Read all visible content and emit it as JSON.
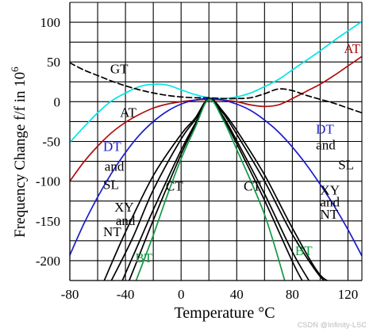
{
  "chart_data": {
    "type": "line",
    "xlabel": "Temperature °C",
    "ylabel": "Frequency Change f/f in 10",
    "ylabel_superscript": "6",
    "xlim": [
      -80,
      130
    ],
    "ylim": [
      -225,
      125
    ],
    "x_ticks": [
      -80,
      -40,
      0,
      40,
      80,
      120
    ],
    "x_tick_labels": [
      "-80",
      "-40",
      "0",
      "40",
      "80",
      "120"
    ],
    "y_ticks": [
      100,
      50,
      0,
      -50,
      -100,
      -150,
      -200
    ],
    "y_tick_labels": [
      "100",
      "50",
      "0",
      "-50",
      "-100",
      "-150",
      "-200"
    ],
    "grid": true,
    "legend": "none (inline labels)",
    "colors": {
      "AT_upper": "#00e5e5",
      "AT_lower": "#b01010",
      "GT": "#000000",
      "DT_SL": "#1c1ccc",
      "XY_NT": "#000000",
      "CT": "#000000",
      "BT": "#119a44",
      "grid": "#000000"
    },
    "series": [
      {
        "name": "AT",
        "color_key": "AT_upper",
        "dash": "solid",
        "x": [
          -80,
          -70,
          -60,
          -50,
          -40,
          -30,
          -20,
          -10,
          0,
          10,
          20,
          30,
          40,
          50,
          60,
          70,
          80,
          90,
          100,
          110,
          120,
          130
        ],
        "y": [
          -51,
          -32,
          -14,
          1,
          11,
          19,
          22,
          21,
          15,
          9,
          5,
          4,
          6,
          11,
          19,
          28,
          40,
          52,
          64,
          77,
          89,
          101
        ]
      },
      {
        "name": "AT",
        "color_key": "AT_lower",
        "dash": "solid",
        "x": [
          -80,
          -70,
          -60,
          -50,
          -40,
          -30,
          -20,
          -10,
          0,
          10,
          20,
          30,
          40,
          50,
          60,
          70,
          80,
          90,
          100,
          110,
          120,
          130
        ],
        "y": [
          -100,
          -76,
          -56,
          -39,
          -26,
          -16,
          -8,
          -3,
          0,
          2,
          3,
          2,
          0,
          -4,
          -6,
          -4,
          4,
          13,
          22,
          33,
          45,
          57
        ]
      },
      {
        "name": "GT",
        "color_key": "GT",
        "dash": "dashed",
        "x": [
          -80,
          -70,
          -60,
          -50,
          -40,
          -30,
          -20,
          -10,
          0,
          10,
          20,
          30,
          40,
          50,
          60,
          70,
          80,
          90,
          100,
          110,
          120,
          130
        ],
        "y": [
          49,
          40,
          33,
          26,
          20,
          15,
          11,
          8,
          6,
          5,
          5,
          4,
          4,
          5,
          10,
          16,
          14,
          8,
          3,
          -2,
          -8,
          -14
        ]
      },
      {
        "name": "DT / SL",
        "color_key": "DT_SL",
        "dash": "solid",
        "x": [
          -80,
          -70,
          -60,
          -50,
          -40,
          -30,
          -20,
          -10,
          0,
          10,
          20,
          30,
          40,
          50,
          60,
          70,
          80,
          90,
          100,
          110,
          120,
          130
        ],
        "y": [
          -193,
          -154,
          -120,
          -90,
          -64,
          -42,
          -25,
          -12,
          -3,
          2,
          4,
          2,
          -3,
          -11,
          -23,
          -38,
          -57,
          -79,
          -104,
          -131,
          -161,
          -194
        ]
      },
      {
        "name": "XY / NT",
        "color_key": "XY_NT",
        "dash": "solid",
        "x": [
          -56,
          -40,
          -20,
          0,
          10,
          20,
          30,
          40,
          60,
          80,
          100,
          113
        ],
        "y": [
          -228,
          -164,
          -93,
          -41,
          -21,
          4,
          -12,
          -36,
          -92,
          -159,
          -218,
          -228
        ]
      },
      {
        "name": "XY / NT",
        "color_key": "XY_NT",
        "dash": "solid",
        "x": [
          -51,
          -35,
          -20,
          0,
          10,
          20,
          30,
          40,
          60,
          80,
          100,
          108
        ],
        "y": [
          -228,
          -172,
          -111,
          -47,
          -23,
          3,
          -14,
          -41,
          -100,
          -167,
          -220,
          -228
        ]
      },
      {
        "name": "CT",
        "color_key": "CT",
        "dash": "solid",
        "x": [
          -43,
          -30,
          -20,
          0,
          10,
          20,
          30,
          40,
          60,
          80,
          93
        ],
        "y": [
          -228,
          -176,
          -136,
          -61,
          -28,
          3,
          -18,
          -49,
          -116,
          -189,
          -228
        ]
      },
      {
        "name": "CT",
        "color_key": "CT",
        "dash": "solid",
        "x": [
          -38,
          -30,
          -20,
          0,
          10,
          20,
          30,
          40,
          60,
          80,
          88
        ],
        "y": [
          -228,
          -193,
          -149,
          -66,
          -30,
          3,
          -20,
          -53,
          -124,
          -201,
          -228
        ]
      },
      {
        "name": "BT",
        "color_key": "BT",
        "dash": "solid",
        "x": [
          -33,
          -20,
          -10,
          0,
          10,
          20,
          30,
          40,
          60,
          75
        ],
        "y": [
          -228,
          -168,
          -118,
          -72,
          -33,
          3,
          -22,
          -60,
          -142,
          -228
        ]
      }
    ],
    "annotations": [
      {
        "text": "AT",
        "color_key": "AT_lower",
        "at": [
          117,
          61
        ]
      },
      {
        "text": "GT",
        "color_key": "GT",
        "at": [
          -51,
          36
        ]
      },
      {
        "text": "AT",
        "color_key": "GT",
        "at": [
          -44,
          -19
        ]
      },
      {
        "text": "DT",
        "color_key": "DT_SL",
        "at": [
          -56,
          -62
        ]
      },
      {
        "text": "and",
        "color_key": "GT",
        "at": [
          -55,
          -87
        ]
      },
      {
        "text": "SL",
        "color_key": "GT",
        "at": [
          -56,
          -110
        ]
      },
      {
        "text": "CT",
        "color_key": "GT",
        "at": [
          -11,
          -112
        ]
      },
      {
        "text": "CT",
        "color_key": "GT",
        "at": [
          45,
          -112
        ]
      },
      {
        "text": "XY",
        "color_key": "GT",
        "at": [
          -48,
          -138
        ]
      },
      {
        "text": "and",
        "color_key": "GT",
        "at": [
          -47,
          -155
        ]
      },
      {
        "text": "NT",
        "color_key": "GT",
        "at": [
          -56,
          -169
        ]
      },
      {
        "text": "BT",
        "color_key": "BT",
        "at": [
          -33,
          -202
        ]
      },
      {
        "text": "DT",
        "color_key": "DT_SL",
        "at": [
          97,
          -40
        ]
      },
      {
        "text": "and",
        "color_key": "GT",
        "at": [
          97,
          -60
        ]
      },
      {
        "text": "SL",
        "color_key": "GT",
        "at": [
          113,
          -85
        ]
      },
      {
        "text": "XY",
        "color_key": "GT",
        "at": [
          100,
          -117
        ]
      },
      {
        "text": "and",
        "color_key": "GT",
        "at": [
          100,
          -132
        ]
      },
      {
        "text": "NT",
        "color_key": "GT",
        "at": [
          100,
          -147
        ]
      },
      {
        "text": "BT",
        "color_key": "BT",
        "at": [
          82,
          -193
        ]
      }
    ]
  },
  "watermark": "CSDN @Infinity-LSC"
}
